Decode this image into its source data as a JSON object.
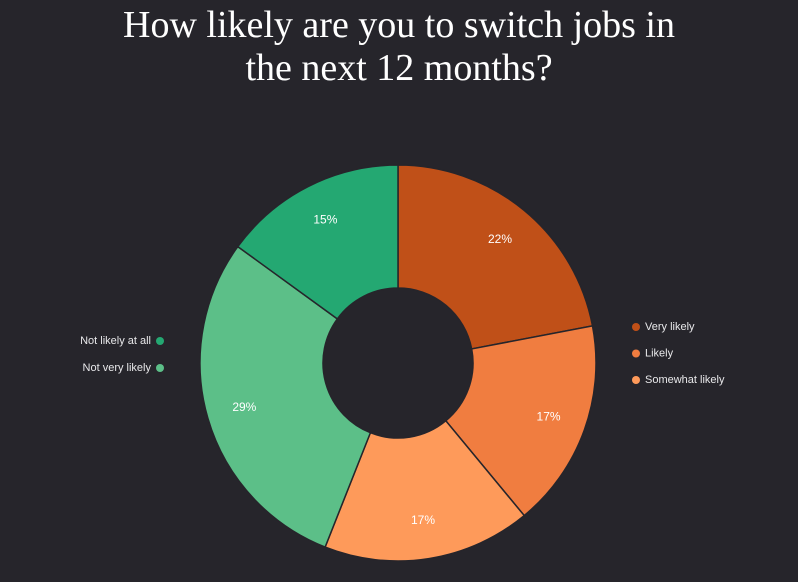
{
  "chart_data": {
    "type": "donut",
    "title": "How likely are you to switch jobs in the next 12 months?",
    "categories": [
      "Very likely",
      "Likely",
      "Somewhat likely",
      "Not very likely",
      "Not likely at all"
    ],
    "values": [
      22,
      17,
      17,
      29,
      15
    ],
    "value_labels": [
      "22%",
      "17%",
      "17%",
      "29%",
      "15%"
    ],
    "colors": [
      "#c05018",
      "#f07d40",
      "#fe9a5a",
      "#5cbf88",
      "#24a872"
    ]
  }
}
